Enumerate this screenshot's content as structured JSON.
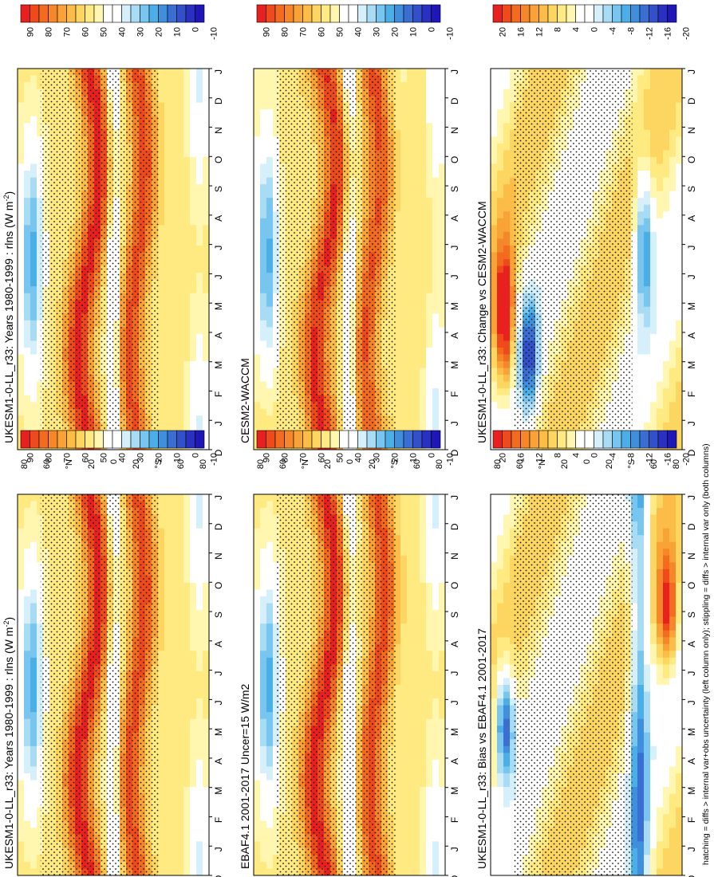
{
  "figure_note": "hatching = diffs > internal var+obs uncertainty (left column only); stippling = diffs > internal var only (both columns)",
  "chart_data": [
    {
      "type": "heatmap",
      "title": "UKESM1-0-LL_r33: Years 1980-1999 : rlns (W m",
      "title_sup": "-2",
      "title_end": ")",
      "months": [
        "D",
        "J",
        "F",
        "M",
        "A",
        "M",
        "J",
        "J",
        "A",
        "S",
        "O",
        "N",
        "D",
        "J"
      ],
      "lat_ticks": [
        "80",
        "60",
        "°N",
        "20",
        "0",
        "20",
        "°S",
        "60",
        "80"
      ],
      "colorbar_labels": [
        "90",
        "80",
        "70",
        "60",
        "50",
        "40",
        "30",
        "20",
        "10",
        "0",
        "-10"
      ],
      "scale": "abs",
      "pattern": "model"
    },
    {
      "type": "heatmap",
      "title": "UKESM1-0-LL_r33: Years 1980-1999 : rlns (W m",
      "title_sup": "-2",
      "title_end": ")",
      "months": [
        "D",
        "J",
        "F",
        "M",
        "A",
        "M",
        "J",
        "J",
        "A",
        "S",
        "O",
        "N",
        "D",
        "J"
      ],
      "lat_ticks": [
        "80",
        "60",
        "°N",
        "20",
        "0",
        "20",
        "°S",
        "60",
        "80"
      ],
      "colorbar_labels": [
        "90",
        "80",
        "70",
        "60",
        "50",
        "40",
        "30",
        "20",
        "10",
        "0",
        "-10"
      ],
      "scale": "abs",
      "pattern": "model"
    },
    {
      "type": "heatmap",
      "title": "CESM2-WACCM",
      "title_sup": "",
      "title_end": "",
      "months": [
        "D",
        "J",
        "F",
        "M",
        "A",
        "M",
        "J",
        "J",
        "A",
        "S",
        "O",
        "N",
        "D",
        "J"
      ],
      "lat_ticks": [
        "80",
        "60",
        "°N",
        "20",
        "0",
        "20",
        "°S",
        "60",
        "80"
      ],
      "colorbar_labels": [
        "90",
        "80",
        "70",
        "60",
        "50",
        "40",
        "30",
        "20",
        "10",
        "0",
        "-10"
      ],
      "scale": "abs",
      "pattern": "model2"
    },
    {
      "type": "heatmap",
      "title": "EBAF4.1 2001-2017 Uncer=15 W/m2",
      "title_sup": "",
      "title_end": "",
      "months": [
        "D",
        "J",
        "F",
        "M",
        "A",
        "M",
        "J",
        "J",
        "A",
        "S",
        "O",
        "N",
        "D",
        "J"
      ],
      "lat_ticks": [
        "80",
        "60",
        "°N",
        "20",
        "0",
        "20",
        "°S",
        "60",
        "80"
      ],
      "colorbar_labels": [
        "90",
        "80",
        "70",
        "60",
        "50",
        "40",
        "30",
        "20",
        "10",
        "0",
        "-10"
      ],
      "scale": "abs",
      "pattern": "obs"
    },
    {
      "type": "heatmap",
      "title": "UKESM1-0-LL_r33: Change vs CESM2-WACCM",
      "title_sup": "",
      "title_end": "",
      "months": [
        "D",
        "J",
        "F",
        "M",
        "A",
        "M",
        "J",
        "J",
        "A",
        "S",
        "O",
        "N",
        "D",
        "J"
      ],
      "lat_ticks": [
        "80",
        "60",
        "°N",
        "20",
        "0",
        "20",
        "°S",
        "60",
        "80"
      ],
      "colorbar_labels": [
        "20",
        "16",
        "12",
        "8",
        "4",
        "0",
        "-4",
        "-8",
        "-12",
        "-16",
        "-20"
      ],
      "scale": "diff",
      "pattern": "change"
    },
    {
      "type": "heatmap",
      "title": "UKESM1-0-LL_r33: Bias vs EBAF4.1 2001-2017",
      "title_sup": "",
      "title_end": "",
      "months": [
        "D",
        "J",
        "F",
        "M",
        "A",
        "M",
        "J",
        "J",
        "A",
        "S",
        "O",
        "N",
        "D",
        "J"
      ],
      "lat_ticks": [
        "80",
        "60",
        "°N",
        "20",
        "0",
        "20",
        "°S",
        "60",
        "80"
      ],
      "colorbar_labels": [
        "20",
        "16",
        "12",
        "8",
        "4",
        "0",
        "-4",
        "-8",
        "-12",
        "-16",
        "-20"
      ],
      "scale": "diff",
      "pattern": "bias"
    }
  ],
  "colors": {
    "abs": [
      "#e8201f",
      "#ee4a1c",
      "#f26b1f",
      "#f6862a",
      "#f9a235",
      "#fbbd48",
      "#fdd661",
      "#feea80",
      "#fff6b0",
      "#ffffff",
      "#ffffff",
      "#d6f0fb",
      "#a8dcf5",
      "#78c6ef",
      "#4caee6",
      "#3f8fdc",
      "#3a6ed2",
      "#3350c8",
      "#2a30c0",
      "#1f16b8"
    ],
    "diff": [
      "#e8201f",
      "#ee4a1c",
      "#f26b1f",
      "#f6862a",
      "#f9a235",
      "#fbbd48",
      "#fdd661",
      "#feea80",
      "#fff6b0",
      "#ffffff",
      "#ffffff",
      "#d6f0fb",
      "#a8dcf5",
      "#78c6ef",
      "#4caee6",
      "#3f8fdc",
      "#3a6ed2",
      "#3350c8",
      "#2a30c0",
      "#1f16b8"
    ]
  }
}
